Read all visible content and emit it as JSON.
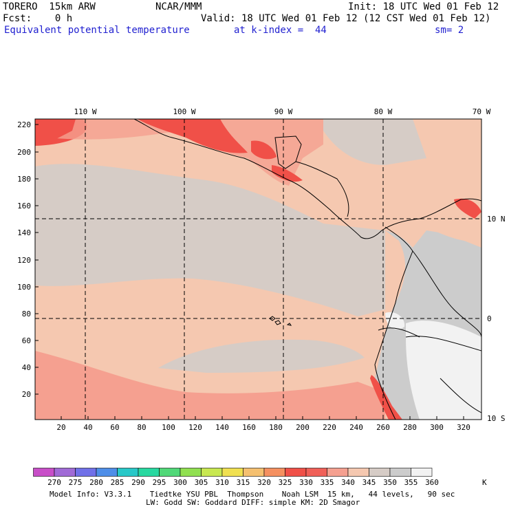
{
  "header": {
    "model": "TORERO  15km ARW",
    "org": "NCAR/MMM",
    "init": "Init: 18 UTC Wed 01 Feb 12",
    "fcst": "Fcst:    0 h",
    "valid": "Valid: 18 UTC Wed 01 Feb 12 (12 CST Wed 01 Feb 12)",
    "field": "Equivalent potential temperature",
    "level": "at k-index =  44",
    "smoothing": "sm= 2"
  },
  "map": {
    "lon_labels": [
      "110 W",
      "100 W",
      "90 W",
      "80 W",
      "70 W"
    ],
    "lat_labels": [
      "10 N",
      "0",
      "10 S"
    ],
    "y_ticks": [
      "220",
      "200",
      "180",
      "160",
      "140",
      "120",
      "100",
      "80",
      "60",
      "40",
      "20"
    ],
    "x_ticks": [
      "20",
      "40",
      "60",
      "80",
      "100",
      "120",
      "140",
      "160",
      "180",
      "200",
      "220",
      "240",
      "260",
      "280",
      "300",
      "320"
    ]
  },
  "colorbar": {
    "labels": [
      "270",
      "275",
      "280",
      "285",
      "290",
      "295",
      "300",
      "305",
      "310",
      "315",
      "320",
      "325",
      "330",
      "335",
      "340",
      "345",
      "350",
      "355",
      "360"
    ],
    "unit": "K",
    "colors": [
      "#c84ec8",
      "#a06ad6",
      "#7070e8",
      "#4e8ee8",
      "#28c8c8",
      "#28d8a0",
      "#50d878",
      "#90e050",
      "#c8e850",
      "#f0e050",
      "#f5c070",
      "#f59060",
      "#f05048",
      "#f06058",
      "#f5a090",
      "#f5c8b0",
      "#d6ccc6",
      "#cccccc",
      "#f2f2f2"
    ]
  },
  "footer": {
    "line1": "Model Info: V3.3.1    Tiedtke YSU PBL  Thompson    Noah LSM  15 km,   44 levels,   90 sec",
    "line2": "LW: Godd SW: Goddard DIFF: simple KM: 2D Smagor"
  }
}
